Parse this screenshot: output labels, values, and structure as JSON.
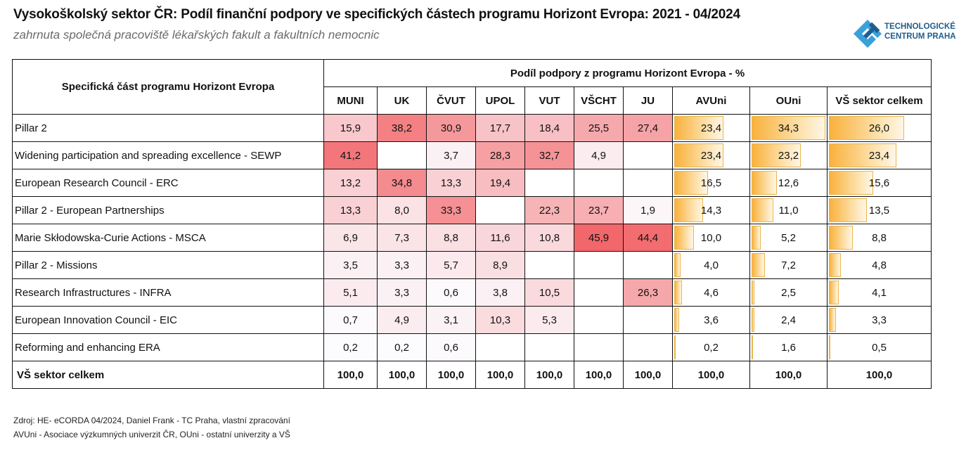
{
  "header": {
    "title": "Vysokoškolský sektor ČR: Podíl finanční podpory ve specifických částech programu Horizont Evropa: 2021 - 04/2024",
    "subtitle": "zahrnuta společná pracoviště lékařských fakult a fakultních nemocnic",
    "logo": {
      "icon": "tc-praha-logo-icon",
      "line1": "TECHNOLOGICKÉ",
      "line2": "CENTRUM PRAHA",
      "color_dark": "#1f5e8e",
      "color_light": "#3aa0dc"
    }
  },
  "footer": {
    "source": "Zdroj: HE- eCORDA 04/2024, Daniel Frank - TC Praha, vlastní zpracování",
    "note": "AVUni - Asociace výzkumných univerzit ČR, OUni - ostatní univerzity a VŠ"
  },
  "colors": {
    "heat_max": "#f2676b",
    "heat_min": "#fcfcff",
    "bar_start": "#f9b13c",
    "bar_end": "#fff6e6"
  },
  "chart_data": {
    "type": "table",
    "title": "Vysokoškolský sektor ČR: Podíl finanční podpory ve specifických částech programu Horizont Evropa: 2021 - 04/2024",
    "row_header": "Specifická část programu Horizont Evropa",
    "group_header": "Podíl podpory z programu Horizont Evropa - %",
    "columns": [
      "MUNI",
      "UK",
      "ČVUT",
      "UPOL",
      "VUT",
      "VŠCHT",
      "JU",
      "AVUni",
      "OUni",
      "VŠ sektor celkem"
    ],
    "heatmap_columns": [
      "MUNI",
      "UK",
      "ČVUT",
      "UPOL",
      "VUT",
      "VŠCHT",
      "JU"
    ],
    "databar_columns": [
      "AVUni",
      "OUni",
      "VŠ sektor celkem"
    ],
    "rows": [
      {
        "label": "Pillar 2",
        "values": [
          "15,9",
          "38,2",
          "30,9",
          "17,7",
          "18,4",
          "25,5",
          "27,4",
          "23,4",
          "34,3",
          "26,0"
        ]
      },
      {
        "label": "Widening participation and spreading excellence -  SEWP",
        "values": [
          "41,2",
          "",
          "3,7",
          "28,3",
          "32,7",
          "4,9",
          "",
          "23,4",
          "23,2",
          "23,4"
        ]
      },
      {
        "label": "European Research Council - ERC",
        "values": [
          "13,2",
          "34,8",
          "13,3",
          "19,4",
          "",
          "",
          "",
          "16,5",
          "12,6",
          "15,6"
        ]
      },
      {
        "label": "Pillar 2 - European Partnerships",
        "values": [
          "13,3",
          "8,0",
          "33,3",
          "",
          "22,3",
          "23,7",
          "1,9",
          "14,3",
          "11,0",
          "13,5"
        ]
      },
      {
        "label": "Marie Skłodowska-Curie Actions - MSCA",
        "values": [
          "6,9",
          "7,3",
          "8,8",
          "11,6",
          "10,8",
          "45,9",
          "44,4",
          "10,0",
          "5,2",
          "8,8"
        ]
      },
      {
        "label": "Pillar 2 - Missions",
        "values": [
          "3,5",
          "3,3",
          "5,7",
          "8,9",
          "",
          "",
          "",
          "4,0",
          "7,2",
          "4,8"
        ]
      },
      {
        "label": "Research Infrastructures - INFRA",
        "values": [
          "5,1",
          "3,3",
          "0,6",
          "3,8",
          "10,5",
          "",
          "26,3",
          "4,6",
          "2,5",
          "4,1"
        ]
      },
      {
        "label": "European Innovation Council - EIC",
        "values": [
          "0,7",
          "4,9",
          "3,1",
          "10,3",
          "5,3",
          "",
          "",
          "3,6",
          "2,4",
          "3,3"
        ]
      },
      {
        "label": "Reforming and enhancing ERA",
        "values": [
          "0,2",
          "0,2",
          "0,6",
          "",
          "",
          "",
          "",
          "0,2",
          "1,6",
          "0,5"
        ]
      }
    ],
    "total_row": {
      "label": "VŠ sektor celkem",
      "values": [
        "100,0",
        "100,0",
        "100,0",
        "100,0",
        "100,0",
        "100,0",
        "100,0",
        "100,0",
        "100,0",
        "100,0"
      ]
    },
    "heatmap_range": [
      0,
      45.9
    ],
    "databar_max": 34.3
  }
}
